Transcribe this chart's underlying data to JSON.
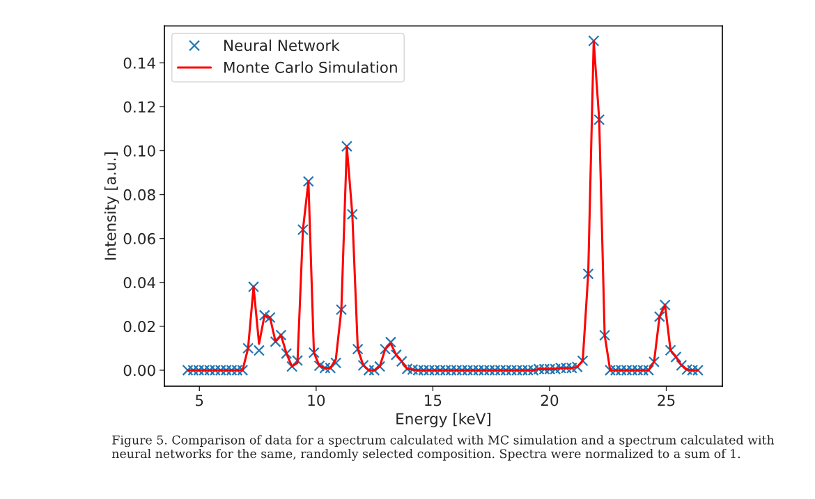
{
  "chart_data": {
    "type": "line",
    "xlabel": "Energy [keV]",
    "ylabel": "Intensity [a.u.]",
    "x": [
      4.5,
      4.735,
      4.97,
      5.205,
      5.44,
      5.675,
      5.91,
      6.145,
      6.38,
      6.615,
      6.85,
      7.085,
      7.32,
      7.555,
      7.79,
      8.025,
      8.26,
      8.495,
      8.73,
      8.965,
      9.2,
      9.435,
      9.67,
      9.905,
      10.14,
      10.375,
      10.61,
      10.845,
      11.08,
      11.315,
      11.55,
      11.785,
      12.02,
      12.255,
      12.49,
      12.725,
      12.96,
      13.195,
      13.43,
      13.665,
      13.9,
      14.135,
      14.37,
      14.605,
      14.84,
      15.075,
      15.31,
      15.545,
      15.78,
      16.015,
      16.25,
      16.485,
      16.72,
      16.955,
      17.19,
      17.425,
      17.66,
      17.895,
      18.13,
      18.365,
      18.6,
      18.835,
      19.07,
      19.305,
      19.54,
      19.775,
      20.01,
      20.245,
      20.48,
      20.715,
      20.95,
      21.185,
      21.42,
      21.655,
      21.89,
      22.125,
      22.36,
      22.595,
      22.83,
      23.065,
      23.3,
      23.535,
      23.77,
      24.005,
      24.24,
      24.475,
      24.71,
      24.945,
      25.18,
      25.415,
      25.65,
      25.885,
      26.12,
      26.355
    ],
    "series": [
      {
        "name": "Neural Network",
        "type": "scatter",
        "marker": "cross",
        "color": "#1f77b4",
        "values": [
          0,
          0,
          0,
          0,
          0,
          0,
          0,
          0,
          0,
          0,
          0,
          0.01,
          0.038,
          0.009,
          0.025,
          0.024,
          0.013,
          0.016,
          0.0076,
          0.0017,
          0.0044,
          0.064,
          0.086,
          0.008,
          0.002,
          0.001,
          0.001,
          0.0033,
          0.0276,
          0.102,
          0.071,
          0.0096,
          0.0022,
          0,
          0,
          0.0017,
          0.0096,
          0.0128,
          0.007,
          0.004,
          0.0006,
          0.0003,
          0,
          0,
          0,
          0,
          0,
          0,
          0,
          0,
          0,
          0,
          0,
          0,
          0,
          0,
          0,
          0,
          0,
          0,
          0,
          0,
          0,
          0,
          0.0005,
          0.0005,
          0.0005,
          0.0005,
          0.001,
          0.001,
          0.001,
          0.0015,
          0.0043,
          0.0439,
          0.15,
          0.1141,
          0.0159,
          0,
          0,
          0,
          0,
          0,
          0,
          0,
          0,
          0.0038,
          0.0244,
          0.0297,
          0.0091,
          0.006,
          0.0022,
          0.0003,
          0,
          0
        ]
      },
      {
        "name": "Monte Carlo Simulation",
        "line_style": "solid",
        "color": "#ff0000",
        "values": [
          0,
          0,
          0,
          0,
          0,
          0,
          0,
          0,
          0,
          0,
          0,
          0.01,
          0.038,
          0.012,
          0.025,
          0.024,
          0.013,
          0.016,
          0.0076,
          0.0017,
          0.0033,
          0.064,
          0.086,
          0.008,
          0.002,
          0.001,
          0.001,
          0.005,
          0.0276,
          0.102,
          0.071,
          0.0096,
          0.0022,
          0,
          0,
          0.0017,
          0.0096,
          0.0122,
          0.007,
          0.004,
          0.0006,
          0.0003,
          0,
          0,
          0,
          0,
          0,
          0,
          0,
          0,
          0,
          0,
          0,
          0,
          0,
          0,
          0,
          0,
          0,
          0,
          0,
          0,
          0,
          0,
          0.0005,
          0.0005,
          0.0005,
          0.0005,
          0.001,
          0.001,
          0.001,
          0.0015,
          0.0043,
          0.0439,
          0.15,
          0.1141,
          0.0159,
          0,
          0,
          0,
          0,
          0,
          0,
          0,
          0,
          0.0038,
          0.0244,
          0.0297,
          0.0091,
          0.006,
          0.0022,
          0.0003,
          0,
          0
        ]
      }
    ],
    "xlim": [
      3.5,
      27.4
    ],
    "xticks": [
      5,
      10,
      15,
      20,
      25
    ],
    "ylim": [
      -0.0073,
      0.1568
    ],
    "yticks": [
      {
        "value": 0,
        "label": "0.00"
      },
      {
        "value": 0.02,
        "label": "0.02"
      },
      {
        "value": 0.04,
        "label": "0.04"
      },
      {
        "value": 0.06,
        "label": "0.06"
      },
      {
        "value": 0.08,
        "label": "0.08"
      },
      {
        "value": 0.1,
        "label": "0.10"
      },
      {
        "value": 0.12,
        "label": "0.12"
      },
      {
        "value": 0.14,
        "label": "0.14"
      }
    ],
    "grid": false,
    "legend": "top left",
    "annotations": [
      "Figure 5. Comparison of data for a spectrum calculated with MC simulation and a spectrum calculated with neural networks for the same, randomly selected composition. Spectra were normalized to a sum of 1."
    ]
  }
}
